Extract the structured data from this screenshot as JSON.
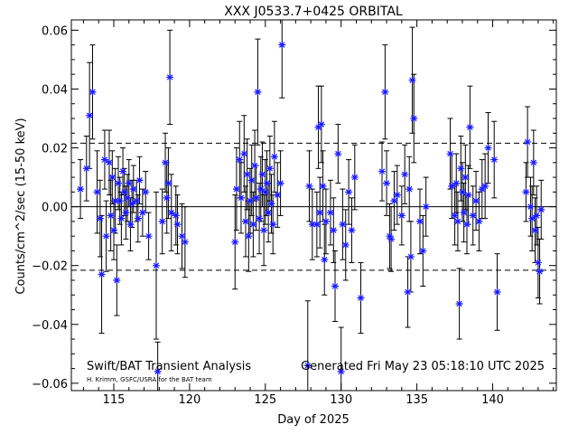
{
  "chart_data": {
    "type": "scatter",
    "title": "XXX J0533.7+0425 ORBITAL",
    "xlabel": "Day of 2025",
    "ylabel": "Counts/cm^2/sec (15-50 keV)",
    "xlim": [
      112.2,
      144.2
    ],
    "ylim": [
      -0.0625,
      0.0635
    ],
    "x_ticks": [
      115,
      120,
      125,
      130,
      135,
      140
    ],
    "y_ticks": [
      -0.06,
      -0.04,
      -0.02,
      0.0,
      0.02,
      0.04,
      0.06
    ],
    "x_tick_labels": [
      "115",
      "120",
      "125",
      "130",
      "135",
      "140"
    ],
    "y_tick_labels": [
      "−0.06",
      "−0.04",
      "−0.02",
      "0.00",
      "0.02",
      "0.04",
      "0.06"
    ],
    "grid": false,
    "reference_lines": {
      "zero": 0.0,
      "plus_3sigma": 0.0216,
      "minus_3sigma": -0.0216
    },
    "marker": "blue asterisk with black error bars",
    "points": [
      [
        112.8,
        0.006,
        0.01
      ],
      [
        113.2,
        0.013,
        0.011
      ],
      [
        113.4,
        0.031,
        0.018
      ],
      [
        113.6,
        0.039,
        0.016
      ],
      [
        113.9,
        0.005,
        0.014
      ],
      [
        114.1,
        -0.004,
        0.013
      ],
      [
        114.2,
        -0.023,
        0.02
      ],
      [
        114.4,
        0.016,
        0.01
      ],
      [
        114.5,
        -0.01,
        0.012
      ],
      [
        114.7,
        0.015,
        0.011
      ],
      [
        114.8,
        -0.003,
        0.012
      ],
      [
        114.9,
        0.01,
        0.009
      ],
      [
        115.0,
        -0.008,
        0.01
      ],
      [
        115.1,
        0.002,
        0.011
      ],
      [
        115.2,
        -0.025,
        0.012
      ],
      [
        115.3,
        0.008,
        0.009
      ],
      [
        115.4,
        0.002,
        0.008
      ],
      [
        115.5,
        -0.004,
        0.009
      ],
      [
        115.6,
        0.012,
        0.008
      ],
      [
        115.7,
        0.005,
        0.008
      ],
      [
        115.8,
        -0.002,
        0.009
      ],
      [
        115.9,
        0.003,
        0.008
      ],
      [
        116.0,
        0.008,
        0.008
      ],
      [
        116.1,
        -0.006,
        0.009
      ],
      [
        116.2,
        0.001,
        0.008
      ],
      [
        116.3,
        0.006,
        0.008
      ],
      [
        116.5,
        0.002,
        0.007
      ],
      [
        116.6,
        -0.004,
        0.008
      ],
      [
        116.7,
        0.009,
        0.008
      ],
      [
        116.9,
        -0.002,
        0.008
      ],
      [
        117.1,
        0.005,
        0.007
      ],
      [
        117.3,
        -0.01,
        0.008
      ],
      [
        117.8,
        -0.02,
        0.025
      ],
      [
        117.9,
        -0.056,
        0.01
      ],
      [
        118.2,
        -0.005,
        0.011
      ],
      [
        118.4,
        0.015,
        0.01
      ],
      [
        118.5,
        0.003,
        0.012
      ],
      [
        118.6,
        0.008,
        0.012
      ],
      [
        118.7,
        0.044,
        0.016
      ],
      [
        118.8,
        -0.002,
        0.013
      ],
      [
        119.1,
        -0.003,
        0.01
      ],
      [
        119.2,
        -0.006,
        0.01
      ],
      [
        119.5,
        -0.01,
        0.011
      ],
      [
        119.7,
        -0.012,
        0.012
      ],
      [
        123.0,
        -0.012,
        0.016
      ],
      [
        123.1,
        0.006,
        0.014
      ],
      [
        123.3,
        0.016,
        0.013
      ],
      [
        123.4,
        0.003,
        0.012
      ],
      [
        123.6,
        0.018,
        0.013
      ],
      [
        123.7,
        -0.005,
        0.012
      ],
      [
        123.8,
        0.011,
        0.012
      ],
      [
        123.9,
        -0.01,
        0.012
      ],
      [
        124.0,
        0.002,
        0.011
      ],
      [
        124.1,
        0.009,
        0.012
      ],
      [
        124.2,
        -0.006,
        0.011
      ],
      [
        124.3,
        0.014,
        0.012
      ],
      [
        124.4,
        0.003,
        0.011
      ],
      [
        124.5,
        0.039,
        0.018
      ],
      [
        124.6,
        -0.004,
        0.012
      ],
      [
        124.7,
        0.006,
        0.011
      ],
      [
        124.8,
        0.011,
        0.011
      ],
      [
        124.9,
        -0.008,
        0.012
      ],
      [
        125.0,
        0.005,
        0.011
      ],
      [
        125.1,
        0.008,
        0.011
      ],
      [
        125.2,
        -0.002,
        0.01
      ],
      [
        125.3,
        0.013,
        0.011
      ],
      [
        125.4,
        0.001,
        0.01
      ],
      [
        125.5,
        -0.006,
        0.01
      ],
      [
        125.6,
        0.017,
        0.012
      ],
      [
        125.8,
        0.004,
        0.011
      ],
      [
        126.0,
        0.008,
        0.011
      ],
      [
        126.1,
        0.055,
        0.018
      ],
      [
        127.8,
        -0.054,
        0.022
      ],
      [
        127.9,
        0.007,
        0.012
      ],
      [
        128.1,
        -0.006,
        0.012
      ],
      [
        128.4,
        -0.006,
        0.011
      ],
      [
        128.5,
        0.027,
        0.014
      ],
      [
        128.6,
        -0.002,
        0.012
      ],
      [
        128.7,
        0.028,
        0.013
      ],
      [
        128.8,
        0.007,
        0.012
      ],
      [
        128.9,
        -0.018,
        0.012
      ],
      [
        129.0,
        -0.005,
        0.011
      ],
      [
        129.3,
        -0.002,
        0.011
      ],
      [
        129.5,
        -0.008,
        0.011
      ],
      [
        129.6,
        -0.027,
        0.012
      ],
      [
        129.8,
        0.018,
        0.01
      ],
      [
        130.0,
        -0.056,
        0.015
      ],
      [
        130.1,
        -0.006,
        0.012
      ],
      [
        130.3,
        -0.013,
        0.012
      ],
      [
        130.5,
        0.005,
        0.011
      ],
      [
        130.7,
        -0.008,
        0.011
      ],
      [
        130.9,
        0.01,
        0.011
      ],
      [
        131.3,
        -0.031,
        0.012
      ],
      [
        132.7,
        0.012,
        0.01
      ],
      [
        132.9,
        0.039,
        0.016
      ],
      [
        133.0,
        0.008,
        0.011
      ],
      [
        133.2,
        -0.01,
        0.011
      ],
      [
        133.3,
        -0.011,
        0.011
      ],
      [
        133.5,
        0.002,
        0.01
      ],
      [
        133.7,
        0.004,
        0.01
      ],
      [
        134.0,
        -0.003,
        0.01
      ],
      [
        134.2,
        0.011,
        0.01
      ],
      [
        134.4,
        -0.029,
        0.012
      ],
      [
        134.5,
        0.006,
        0.011
      ],
      [
        134.6,
        -0.017,
        0.012
      ],
      [
        134.7,
        0.043,
        0.018
      ],
      [
        134.8,
        0.03,
        0.015
      ],
      [
        135.2,
        -0.005,
        0.011
      ],
      [
        135.4,
        -0.015,
        0.012
      ],
      [
        135.6,
        0.0,
        0.01
      ],
      [
        137.2,
        0.018,
        0.012
      ],
      [
        137.3,
        0.007,
        0.011
      ],
      [
        137.5,
        -0.003,
        0.01
      ],
      [
        137.6,
        0.008,
        0.01
      ],
      [
        137.7,
        -0.005,
        0.01
      ],
      [
        137.8,
        -0.033,
        0.012
      ],
      [
        137.9,
        0.013,
        0.011
      ],
      [
        138.0,
        0.005,
        0.01
      ],
      [
        138.1,
        -0.002,
        0.01
      ],
      [
        138.2,
        0.01,
        0.011
      ],
      [
        138.3,
        -0.006,
        0.01
      ],
      [
        138.4,
        0.004,
        0.01
      ],
      [
        138.5,
        0.027,
        0.014
      ],
      [
        138.7,
        -0.003,
        0.01
      ],
      [
        138.9,
        0.002,
        0.01
      ],
      [
        139.1,
        -0.005,
        0.01
      ],
      [
        139.3,
        0.006,
        0.01
      ],
      [
        139.5,
        0.007,
        0.011
      ],
      [
        139.7,
        0.02,
        0.012
      ],
      [
        140.1,
        0.016,
        0.013
      ],
      [
        140.3,
        -0.029,
        0.013
      ],
      [
        142.2,
        0.005,
        0.01
      ],
      [
        142.3,
        0.022,
        0.012
      ],
      [
        142.5,
        0.0,
        0.01
      ],
      [
        142.6,
        -0.004,
        0.011
      ],
      [
        142.7,
        0.015,
        0.011
      ],
      [
        142.8,
        -0.008,
        0.011
      ],
      [
        142.9,
        -0.003,
        0.01
      ],
      [
        143.0,
        -0.019,
        0.012
      ],
      [
        143.1,
        -0.022,
        0.011
      ],
      [
        143.2,
        -0.001,
        0.01
      ]
    ]
  },
  "footer": {
    "left_caption": "Swift/BAT Transient Analysis",
    "left_credit": "H. Krimm, GSFC/USRA for the BAT team",
    "right_caption": "Generated Fri May 23 05:18:10 UTC 2025"
  },
  "colors": {
    "marker": "#1a1aff",
    "errorbar": "#000000",
    "axis": "#000000"
  }
}
